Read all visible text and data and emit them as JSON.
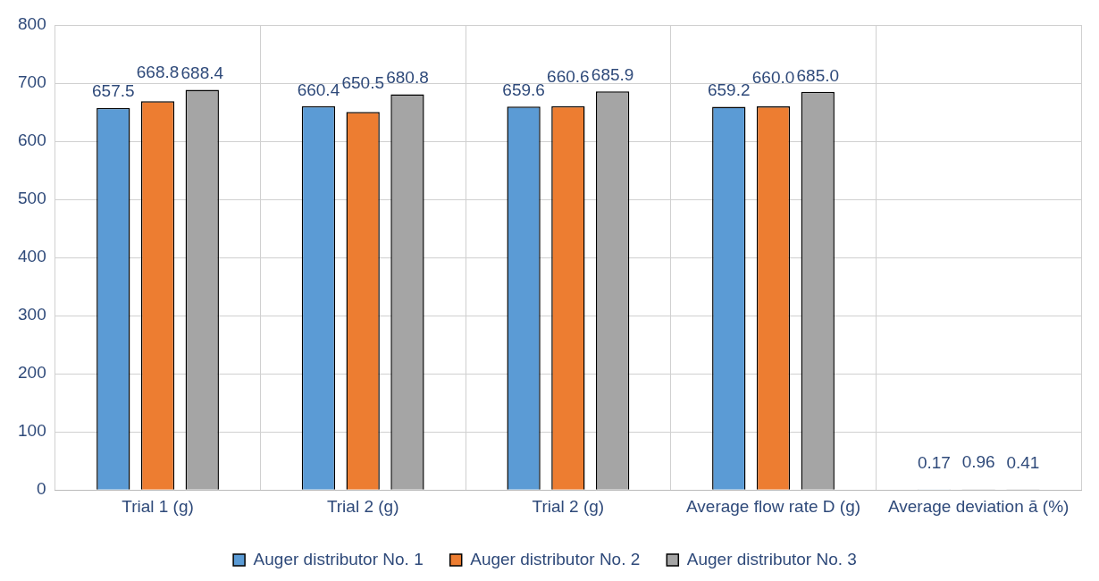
{
  "chart_data": {
    "type": "bar",
    "categories": [
      "Trial 1 (g)",
      "Trial 2 (g)",
      "Trial 2 (g)",
      "Average flow rate D (g)",
      "Average deviation ā (%)"
    ],
    "series": [
      {
        "name": "Auger distributor No. 1",
        "color": "#5b9bd5",
        "values": [
          657.5,
          660.4,
          659.6,
          659.2,
          0.17
        ],
        "value_labels": [
          "657.5",
          "660.4",
          "659.6",
          "659.2",
          "0.17"
        ]
      },
      {
        "name": "Auger distributor No. 2",
        "color": "#ed7d31",
        "values": [
          668.8,
          650.5,
          660.6,
          660.0,
          0.96
        ],
        "value_labels": [
          "668.8",
          "650.5",
          "660.6",
          "660.0",
          "0.96"
        ]
      },
      {
        "name": "Auger distributor No. 3",
        "color": "#a5a5a5",
        "values": [
          688.4,
          680.8,
          685.9,
          685.0,
          0.41
        ],
        "value_labels": [
          "688.4",
          "680.8",
          "685.9",
          "685.0",
          "0.41"
        ]
      }
    ],
    "ylim": [
      0,
      800
    ],
    "yticks": [
      0,
      100,
      200,
      300,
      400,
      500,
      600,
      700,
      800
    ],
    "grid": true,
    "legend": "bottom"
  }
}
